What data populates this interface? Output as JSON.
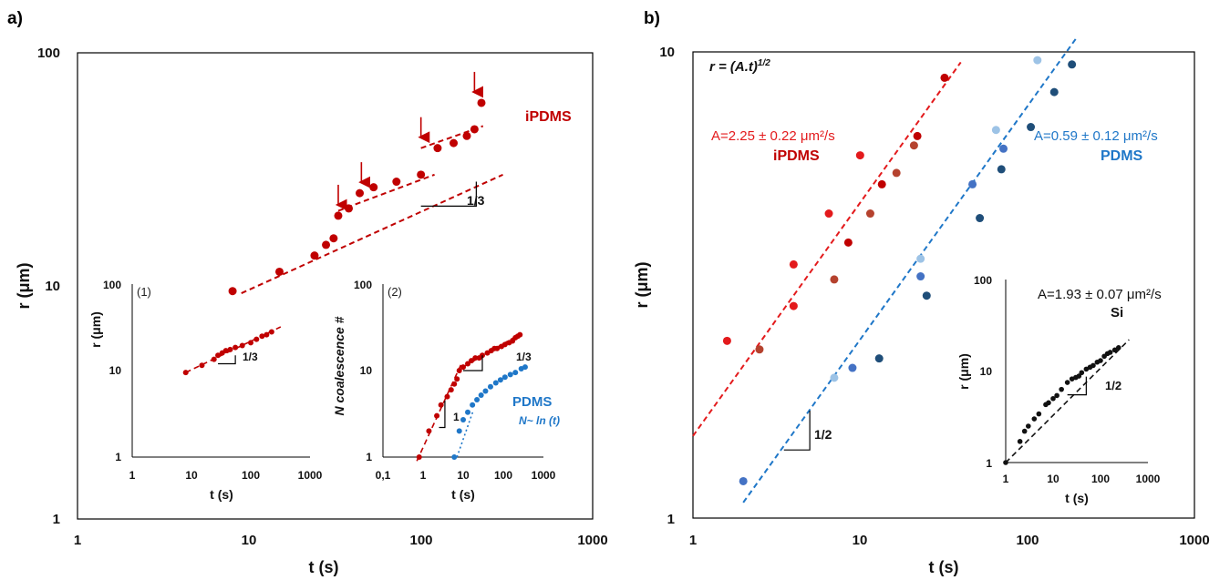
{
  "chart_data": [
    {
      "type": "scatter",
      "panel_label": "a)",
      "xscale": "log",
      "yscale": "log",
      "xlim": [
        1,
        1000
      ],
      "ylim": [
        1,
        100
      ],
      "x_ticks": [
        "1",
        "10",
        "100",
        "1000"
      ],
      "y_ticks": [
        "1",
        "10",
        "100"
      ],
      "xlabel": "t (s)",
      "ylabel": "r (μm)",
      "grid": false,
      "series": [
        {
          "name": "iPDMS",
          "color": "#c00000",
          "x": [
            8,
            15,
            24,
            28,
            31,
            33,
            38,
            44,
            53,
            72,
            100,
            125,
            155,
            185,
            205,
            225
          ],
          "y": [
            9.5,
            11.5,
            13.5,
            15,
            16,
            20,
            21.5,
            25,
            26.5,
            28,
            30,
            39,
            41,
            44,
            47,
            61
          ]
        }
      ],
      "fit_lines": [
        {
          "color": "#c00000",
          "style": "dashed",
          "x": [
            9,
            300
          ],
          "y": [
            9.3,
            30
          ]
        },
        {
          "color": "#c00000",
          "style": "dashed",
          "x": [
            33,
            120
          ],
          "y": [
            21,
            30
          ]
        },
        {
          "color": "#c00000",
          "style": "dashed",
          "x": [
            100,
            230
          ],
          "y": [
            39,
            48.5
          ]
        }
      ],
      "arrows_at": [
        [
          33,
          20
        ],
        [
          45,
          25
        ],
        [
          100,
          39
        ],
        [
          205,
          61
        ]
      ],
      "slope_triangle": {
        "label": "1/3",
        "x0": 100,
        "y0": 22,
        "x1": 210,
        "y1": 28
      },
      "annotations": [
        {
          "text": "iPDMS",
          "color": "#c00000"
        }
      ],
      "insets": [
        {
          "label": "(1)",
          "xscale": "log",
          "yscale": "log",
          "xlim": [
            1,
            1000
          ],
          "ylim": [
            1,
            100
          ],
          "x_ticks": [
            "1",
            "10",
            "100",
            "1000"
          ],
          "y_ticks": [
            "1",
            "10",
            "100"
          ],
          "xlabel": "t (s)",
          "ylabel": "r (μm)",
          "series": [
            {
              "color": "#c00000",
              "x": [
                8,
                15,
                24,
                28,
                33,
                38,
                45,
                55,
                72,
                100,
                125,
                155,
                185,
                225
              ],
              "y": [
                9.5,
                11.5,
                13.5,
                15,
                16,
                17,
                17.5,
                18.5,
                19.5,
                21,
                23,
                25,
                26,
                28
              ]
            }
          ],
          "fit_lines": [
            {
              "color": "#c00000",
              "style": "dashed",
              "x": [
                8,
                320
              ],
              "y": [
                9.5,
                32
              ]
            }
          ],
          "slope_triangle": {
            "label": "1/3",
            "x0": 28,
            "y0": 12,
            "x1": 55,
            "y1": 15
          }
        },
        {
          "label": "(2)",
          "xscale": "log",
          "yscale": "log",
          "xlim": [
            0.1,
            1000
          ],
          "ylim": [
            1,
            100
          ],
          "x_ticks": [
            "0,1",
            "1",
            "10",
            "100",
            "1000"
          ],
          "y_ticks": [
            "1",
            "10",
            "100"
          ],
          "xlabel": "t (s)",
          "ylabel": "N coalescence #",
          "series": [
            {
              "name": "iPDMS",
              "color": "#c00000",
              "x": [
                0.8,
                1.4,
                2.2,
                2.8,
                4,
                5,
                6,
                7,
                8,
                10,
                13,
                16,
                20,
                25,
                30,
                40,
                50,
                60,
                70,
                90,
                110,
                140,
                170,
                200,
                230,
                260
              ],
              "y": [
                1,
                2,
                3,
                4,
                5,
                6,
                7,
                8,
                10,
                11,
                12,
                13,
                14,
                14,
                15,
                16,
                17,
                18,
                18,
                19,
                20,
                21,
                22,
                24,
                25,
                26
              ]
            },
            {
              "name": "PDMS",
              "color": "#1f77c8",
              "x": [
                6,
                8,
                10,
                13,
                17,
                22,
                28,
                36,
                48,
                65,
                85,
                110,
                150,
                200,
                280,
                350
              ],
              "y": [
                1,
                2,
                2.7,
                3.3,
                4,
                4.6,
                5.2,
                5.8,
                6.5,
                7.2,
                7.8,
                8.4,
                9,
                9.5,
                10.5,
                11
              ]
            }
          ],
          "fit_lines": [
            {
              "color": "#c00000",
              "style": "dashed",
              "x": [
                0.7,
                9
              ],
              "y": [
                0.9,
                12
              ]
            },
            {
              "color": "#c00000",
              "style": "dashed",
              "x": [
                10,
                280
              ],
              "y": [
                11,
                27
              ]
            },
            {
              "color": "#1f77c8",
              "style": "dotted",
              "x": [
                7,
                18
              ],
              "y": [
                1,
                3.5
              ]
            }
          ],
          "slope_triangles": [
            {
              "label": "1",
              "x0": 2.5,
              "y0": 2.2,
              "x1": 3.5,
              "y1": 4.5
            },
            {
              "label": "1/3",
              "x0": 10,
              "y0": 10,
              "x1": 30,
              "y1": 15
            }
          ],
          "annotations": [
            {
              "text": "PDMS",
              "color": "#1f77c8"
            },
            {
              "text": "N~ ln (t)",
              "color": "#1f77c8"
            }
          ]
        }
      ]
    },
    {
      "type": "scatter",
      "panel_label": "b)",
      "xscale": "log",
      "yscale": "log",
      "xlim": [
        1,
        1000
      ],
      "ylim": [
        1,
        10
      ],
      "x_ticks": [
        "1",
        "10",
        "100",
        "1000"
      ],
      "y_ticks": [
        "1",
        "10"
      ],
      "xlabel": "t (s)",
      "ylabel": "r (μm)",
      "grid": false,
      "equation": "r = (A.t)1/2",
      "series": [
        {
          "name": "iPDMS",
          "color": "#c00000",
          "x": [
            1.6,
            2.5,
            4,
            4,
            6.5,
            7,
            8.5,
            10,
            11.5,
            13.5,
            16.5,
            21,
            22,
            32
          ],
          "y": [
            2.4,
            2.3,
            2.85,
            3.5,
            4.5,
            3.25,
            3.9,
            6.0,
            4.5,
            5.2,
            5.5,
            6.3,
            6.6,
            8.8
          ],
          "point_colors": [
            "#e31a1c",
            "#b5422e",
            "#e31a1c",
            "#e31a1c",
            "#e31a1c",
            "#b5422e",
            "#c00000",
            "#e31a1c",
            "#b5422e",
            "#c00000",
            "#b5422e",
            "#b5422e",
            "#c00000",
            "#c00000"
          ]
        },
        {
          "name": "PDMS",
          "color": "#1f77c8",
          "x": [
            2,
            7,
            9,
            13,
            23,
            23,
            25,
            47,
            52,
            65,
            70,
            72,
            105,
            115,
            145,
            185
          ],
          "y": [
            1.2,
            2.0,
            2.1,
            2.2,
            3.3,
            3.6,
            3.0,
            5.2,
            4.4,
            6.8,
            5.6,
            6.2,
            6.9,
            9.6,
            8.2,
            9.4
          ],
          "point_colors": [
            "#4472c4",
            "#9dc3e6",
            "#4472c4",
            "#1f4e79",
            "#4472c4",
            "#9dc3e6",
            "#1f4e79",
            "#4472c4",
            "#1f4e79",
            "#9dc3e6",
            "#1f4e79",
            "#4472c4",
            "#1f4e79",
            "#9dc3e6",
            "#1f4e79",
            "#1f4e79"
          ]
        }
      ],
      "fit_lines": [
        {
          "color": "#e31a1c",
          "style": "dashed",
          "x": [
            1,
            40
          ],
          "y": [
            1.5,
            9.5
          ]
        },
        {
          "color": "#1f77c8",
          "style": "dashed",
          "x": [
            2,
            200
          ],
          "y": [
            1.08,
            10.8
          ]
        }
      ],
      "slope_triangle": {
        "label": "1/2",
        "x0": 3.5,
        "y0": 1.4,
        "x1": 5,
        "y1": 1.7
      },
      "annotations": [
        {
          "text": "A=2.25 ± 0.22 μm²/s",
          "color": "#e31a1c"
        },
        {
          "text": "iPDMS",
          "color": "#c00000"
        },
        {
          "text": "A=0.59 ± 0.12 μm²/s",
          "color": "#1f77c8"
        },
        {
          "text": "PDMS",
          "color": "#1f77c8"
        }
      ],
      "insets": [
        {
          "xscale": "log",
          "yscale": "log",
          "xlim": [
            1,
            1000
          ],
          "ylim": [
            1,
            100
          ],
          "x_ticks": [
            "1",
            "10",
            "100",
            "1000"
          ],
          "y_ticks": [
            "1",
            "10",
            "100"
          ],
          "xlabel": "t (s)",
          "ylabel": "r (μm)",
          "series": [
            {
              "name": "Si",
              "color": "#111111",
              "x": [
                1,
                2,
                2.5,
                3,
                4,
                5,
                7,
                8,
                10,
                12,
                15,
                20,
                25,
                30,
                35,
                40,
                50,
                60,
                70,
                85,
                100,
                120,
                140,
                160,
                200,
                240
              ],
              "y": [
                1,
                1.7,
                2.2,
                2.5,
                3,
                3.4,
                4.3,
                4.5,
                5,
                5.4,
                6.3,
                7.5,
                8.2,
                8.5,
                8.8,
                9.6,
                10.5,
                11,
                11.5,
                12.5,
                13,
                14.5,
                15.5,
                16,
                17,
                18
              ]
            }
          ],
          "fit_lines": [
            {
              "color": "#111111",
              "style": "dashed",
              "x": [
                1,
                400
              ],
              "y": [
                1,
                22
              ]
            }
          ],
          "slope_triangle": {
            "label": "1/2",
            "x0": 20,
            "y0": 5.5,
            "x1": 50,
            "y1": 8.7
          },
          "annotations": [
            {
              "text": "A=1.93 ± 0.07 μm²/s",
              "color": "#111111"
            },
            {
              "text": "Si",
              "color": "#111111"
            }
          ]
        }
      ]
    }
  ]
}
